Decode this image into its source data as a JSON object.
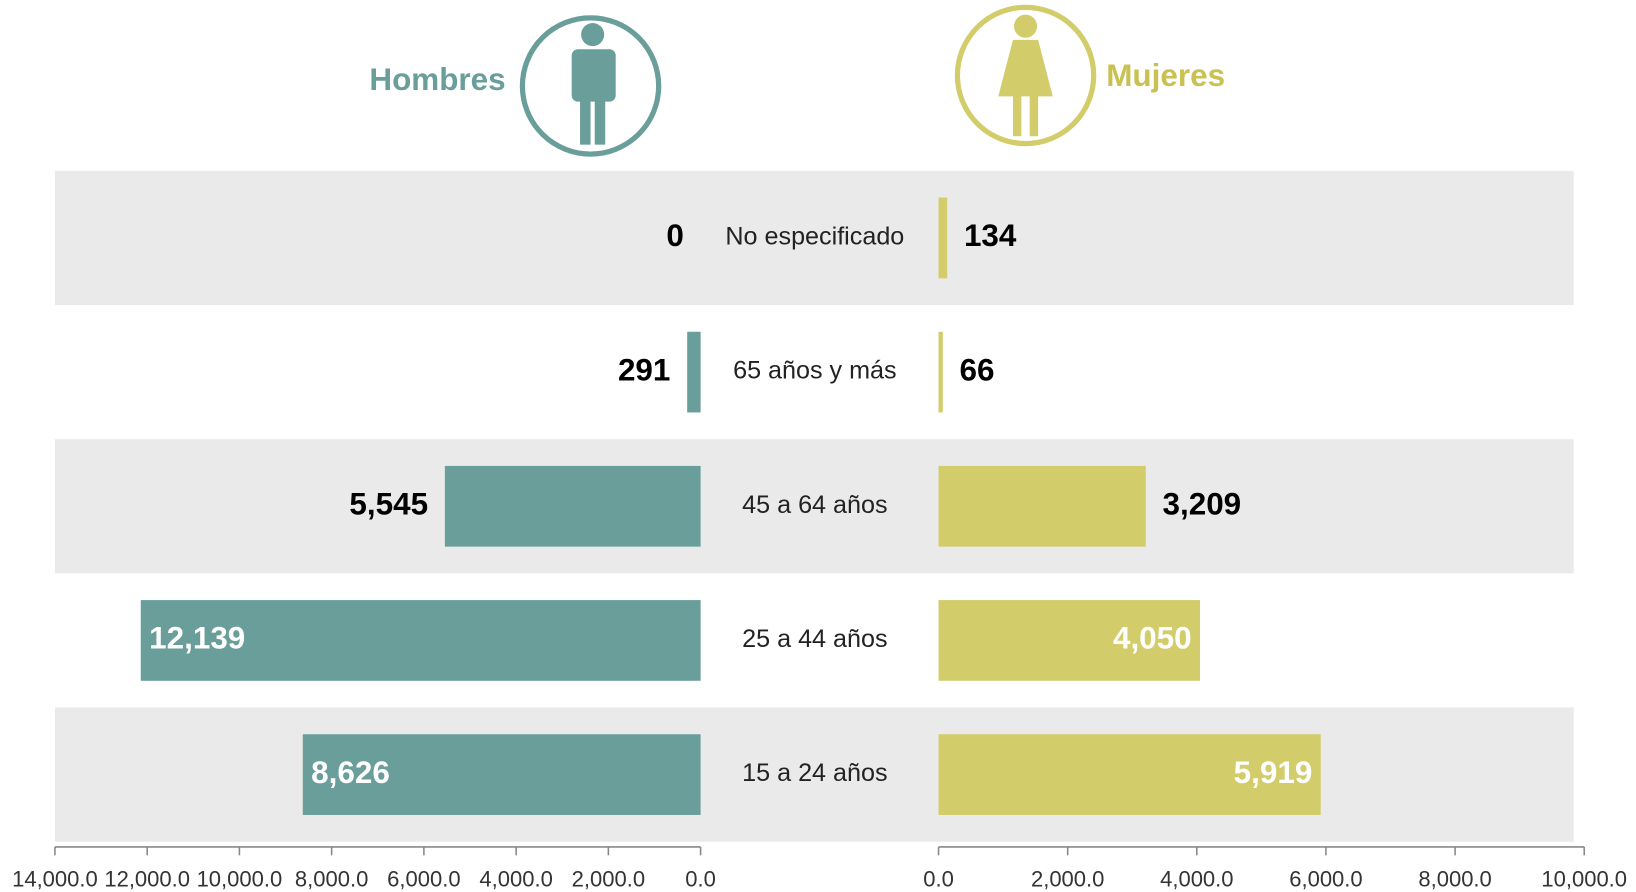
{
  "chart_data": {
    "type": "bar",
    "orientation": "horizontal",
    "categories": [
      "No especificado",
      "65 años y más",
      "45 a  64 años",
      "25 a 44 años",
      "15 a 24 años"
    ],
    "series": [
      {
        "name": "Hombres",
        "color": "#699e9a",
        "values": [
          0,
          291,
          5545,
          12139,
          8626
        ],
        "value_labels": [
          "0",
          "291",
          "5,545",
          "12,139",
          "8,626"
        ],
        "xlim": [
          14000,
          0
        ],
        "xticks": [
          {
            "value": 14000,
            "label": "14,000.0"
          },
          {
            "value": 12000,
            "label": "12,000.0"
          },
          {
            "value": 10000,
            "label": "10,000.0"
          },
          {
            "value": 8000,
            "label": "8,000.0"
          },
          {
            "value": 6000,
            "label": "6,000.0"
          },
          {
            "value": 4000,
            "label": "4,000.0"
          },
          {
            "value": 2000,
            "label": "2,000.0"
          },
          {
            "value": 0,
            "label": "0.0"
          }
        ]
      },
      {
        "name": "Mujeres",
        "color": "#d3cc6a",
        "values": [
          134,
          66,
          3209,
          4050,
          5919
        ],
        "value_labels": [
          "134",
          "66",
          "3,209",
          "4,050",
          "5,919"
        ],
        "xlim": [
          0,
          10000
        ],
        "xticks": [
          {
            "value": 0,
            "label": "0.0"
          },
          {
            "value": 2000,
            "label": "2,000.0"
          },
          {
            "value": 4000,
            "label": "4,000.0"
          },
          {
            "value": 6000,
            "label": "6,000.0"
          },
          {
            "value": 8000,
            "label": "8,000.0"
          },
          {
            "value": 10000,
            "label": "10,000.0"
          }
        ]
      }
    ]
  }
}
